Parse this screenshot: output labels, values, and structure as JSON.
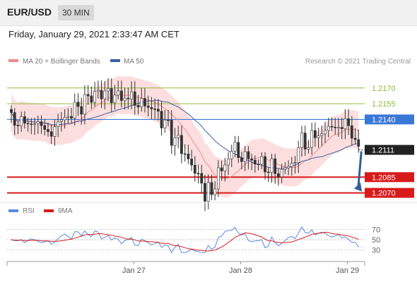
{
  "header": {
    "symbol": "EUR/USD",
    "timeframe": "30 MIN"
  },
  "datetime": "Friday, January 29, 2021 2:33:47 AM CET",
  "legend": {
    "bollinger": "MA 20 + Bollinger Bands",
    "ma50": "MA 50",
    "credit": "Research © 2021 Trading Central"
  },
  "rsi_legend": {
    "rsi": "RSI",
    "ma9": "9MA"
  },
  "colors": {
    "bollinger": "#f08a8a",
    "ma50": "#3a5fa8",
    "support": "#d81a1a",
    "resistance": "#8bbf3a",
    "pivot": "#3a78d8",
    "arrow": "#2f5f9e",
    "current": "#222222"
  },
  "chart_data": {
    "type": "line",
    "price_range": [
      1.2063,
      1.2188
    ],
    "x_labels": [
      {
        "label": "Jan 27",
        "index": 35
      },
      {
        "label": "Jan 28",
        "index": 67
      },
      {
        "label": "Jan 29",
        "index": 99
      }
    ],
    "levels": [
      {
        "label": "1.2170",
        "value": 1.217,
        "kind": "resistance"
      },
      {
        "label": "1.2155",
        "value": 1.2155,
        "kind": "resistance"
      },
      {
        "label": "1.2140",
        "value": 1.214,
        "kind": "pivot"
      },
      {
        "label": "1.2111",
        "value": 1.2111,
        "kind": "current"
      },
      {
        "label": "1.2085",
        "value": 1.2085,
        "kind": "support"
      },
      {
        "label": "1.2070",
        "value": 1.207,
        "kind": "support"
      }
    ],
    "forecast_arrow": {
      "from": 1.2111,
      "to": 1.207
    },
    "rsi_range": [
      20,
      80
    ],
    "rsi_ticks": [
      30,
      50,
      70
    ]
  }
}
